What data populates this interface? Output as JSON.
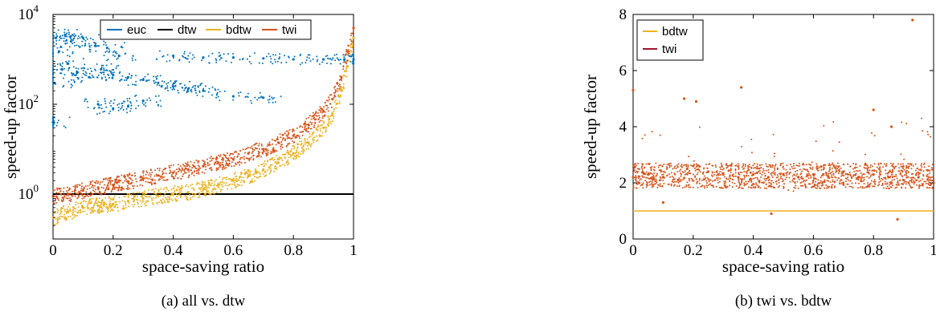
{
  "chart_data": [
    {
      "type": "scatter",
      "caption": "(a) all vs. dtw",
      "xlabel": "space-saving ratio",
      "ylabel": "speed-up factor",
      "xlim": [
        0,
        1
      ],
      "ylim": [
        0.1,
        10000
      ],
      "yscale": "log",
      "x_ticks": [
        "0",
        "0.2",
        "0.4",
        "0.6",
        "0.8",
        "1"
      ],
      "y_ticks": [
        {
          "value": 1,
          "base": "10",
          "exp": "0"
        },
        {
          "value": 100,
          "base": "10",
          "exp": "2"
        },
        {
          "value": 10000,
          "base": "10",
          "exp": "4"
        }
      ],
      "legend": {
        "position": "top",
        "orientation": "horizontal"
      },
      "grid": false,
      "series": [
        {
          "name": "euc",
          "color": "#0072BD",
          "points": [
            [
              0.0,
              40
            ],
            [
              0.005,
              300
            ],
            [
              0.01,
              3000
            ],
            [
              0.02,
              1500
            ],
            [
              0.03,
              600
            ],
            [
              0.04,
              3500
            ],
            [
              0.05,
              800
            ],
            [
              0.06,
              2500
            ],
            [
              0.08,
              500
            ],
            [
              0.1,
              3000
            ],
            [
              0.12,
              400
            ],
            [
              0.14,
              2000
            ],
            [
              0.16,
              600
            ],
            [
              0.18,
              1800
            ],
            [
              0.2,
              450
            ],
            [
              0.22,
              1200
            ],
            [
              0.25,
              400
            ],
            [
              0.3,
              350
            ],
            [
              0.35,
              300
            ],
            [
              0.4,
              250
            ],
            [
              0.45,
              220
            ],
            [
              0.5,
              200
            ],
            [
              0.6,
              150
            ],
            [
              0.7,
              140
            ],
            [
              0.15,
              100
            ],
            [
              0.2,
              80
            ],
            [
              0.25,
              90
            ],
            [
              0.3,
              120
            ],
            [
              0.4,
              1200
            ],
            [
              0.5,
              1100
            ],
            [
              0.6,
              1100
            ],
            [
              0.7,
              1050
            ],
            [
              0.8,
              1000
            ],
            [
              0.9,
              1000
            ],
            [
              0.97,
              1000
            ],
            [
              1.0,
              1000
            ]
          ]
        },
        {
          "name": "dtw",
          "color": "#000000",
          "points": [
            [
              0.0,
              1
            ],
            [
              0.2,
              1
            ],
            [
              0.4,
              1
            ],
            [
              0.6,
              1
            ],
            [
              0.8,
              1
            ],
            [
              1.0,
              1
            ]
          ]
        },
        {
          "name": "bdtw",
          "color": "#EDB120",
          "points": [
            [
              0.0,
              0.3
            ],
            [
              0.05,
              0.4
            ],
            [
              0.1,
              0.5
            ],
            [
              0.15,
              0.55
            ],
            [
              0.2,
              0.6
            ],
            [
              0.25,
              0.7
            ],
            [
              0.3,
              0.8
            ],
            [
              0.35,
              0.9
            ],
            [
              0.4,
              1.0
            ],
            [
              0.45,
              1.1
            ],
            [
              0.5,
              1.3
            ],
            [
              0.55,
              1.6
            ],
            [
              0.6,
              2.0
            ],
            [
              0.65,
              2.5
            ],
            [
              0.7,
              3.5
            ],
            [
              0.75,
              5
            ],
            [
              0.8,
              8
            ],
            [
              0.85,
              14
            ],
            [
              0.9,
              30
            ],
            [
              0.93,
              60
            ],
            [
              0.96,
              200
            ],
            [
              0.98,
              700
            ],
            [
              1.0,
              3000
            ]
          ]
        },
        {
          "name": "twi",
          "color": "#D95319",
          "points": [
            [
              0.0,
              0.9
            ],
            [
              0.05,
              1.0
            ],
            [
              0.1,
              1.2
            ],
            [
              0.15,
              1.4
            ],
            [
              0.2,
              1.6
            ],
            [
              0.25,
              1.9
            ],
            [
              0.3,
              2.2
            ],
            [
              0.35,
              2.6
            ],
            [
              0.4,
              3.0
            ],
            [
              0.45,
              3.5
            ],
            [
              0.5,
              4.2
            ],
            [
              0.55,
              5
            ],
            [
              0.6,
              6
            ],
            [
              0.65,
              8
            ],
            [
              0.7,
              10
            ],
            [
              0.75,
              14
            ],
            [
              0.8,
              20
            ],
            [
              0.85,
              35
            ],
            [
              0.9,
              70
            ],
            [
              0.93,
              130
            ],
            [
              0.96,
              400
            ],
            [
              0.98,
              1500
            ],
            [
              1.0,
              5000
            ]
          ]
        }
      ]
    },
    {
      "type": "scatter",
      "caption": "(b) twi vs. bdtw",
      "xlabel": "space-saving ratio",
      "ylabel": "speed-up factor",
      "xlim": [
        0,
        1
      ],
      "ylim": [
        0,
        8
      ],
      "x_ticks": [
        "0",
        "0.2",
        "0.4",
        "0.6",
        "0.8",
        "1"
      ],
      "y_ticks": [
        "0",
        "2",
        "4",
        "6",
        "8"
      ],
      "legend": {
        "position": "top-left",
        "orientation": "vertical"
      },
      "grid": false,
      "series": [
        {
          "name": "bdtw",
          "color": "#EDB120",
          "points": [
            [
              0.0,
              1
            ],
            [
              0.25,
              1
            ],
            [
              0.5,
              1
            ],
            [
              0.75,
              1
            ],
            [
              1.0,
              1
            ]
          ]
        },
        {
          "name": "twi",
          "color": "#D95319",
          "points": [
            [
              0.0,
              2.2
            ],
            [
              0.02,
              2.0
            ],
            [
              0.05,
              2.3
            ],
            [
              0.1,
              2.2
            ],
            [
              0.15,
              2.1
            ],
            [
              0.18,
              2.5
            ],
            [
              0.2,
              2.6
            ],
            [
              0.25,
              2.4
            ],
            [
              0.3,
              2.3
            ],
            [
              0.35,
              2.2
            ],
            [
              0.4,
              2.3
            ],
            [
              0.45,
              2.2
            ],
            [
              0.5,
              2.3
            ],
            [
              0.55,
              2.2
            ],
            [
              0.6,
              2.3
            ],
            [
              0.65,
              2.2
            ],
            [
              0.7,
              2.4
            ],
            [
              0.75,
              2.2
            ],
            [
              0.8,
              2.3
            ],
            [
              0.85,
              2.2
            ],
            [
              0.9,
              2.1
            ],
            [
              0.95,
              2.2
            ],
            [
              1.0,
              2.0
            ],
            [
              0.0,
              5.3
            ],
            [
              0.17,
              5.0
            ],
            [
              0.21,
              4.9
            ],
            [
              0.36,
              5.4
            ],
            [
              0.8,
              4.6
            ],
            [
              0.86,
              4.0
            ],
            [
              0.93,
              7.8
            ],
            [
              0.46,
              0.9
            ],
            [
              0.88,
              0.7
            ],
            [
              0.1,
              1.3
            ]
          ]
        }
      ]
    }
  ]
}
